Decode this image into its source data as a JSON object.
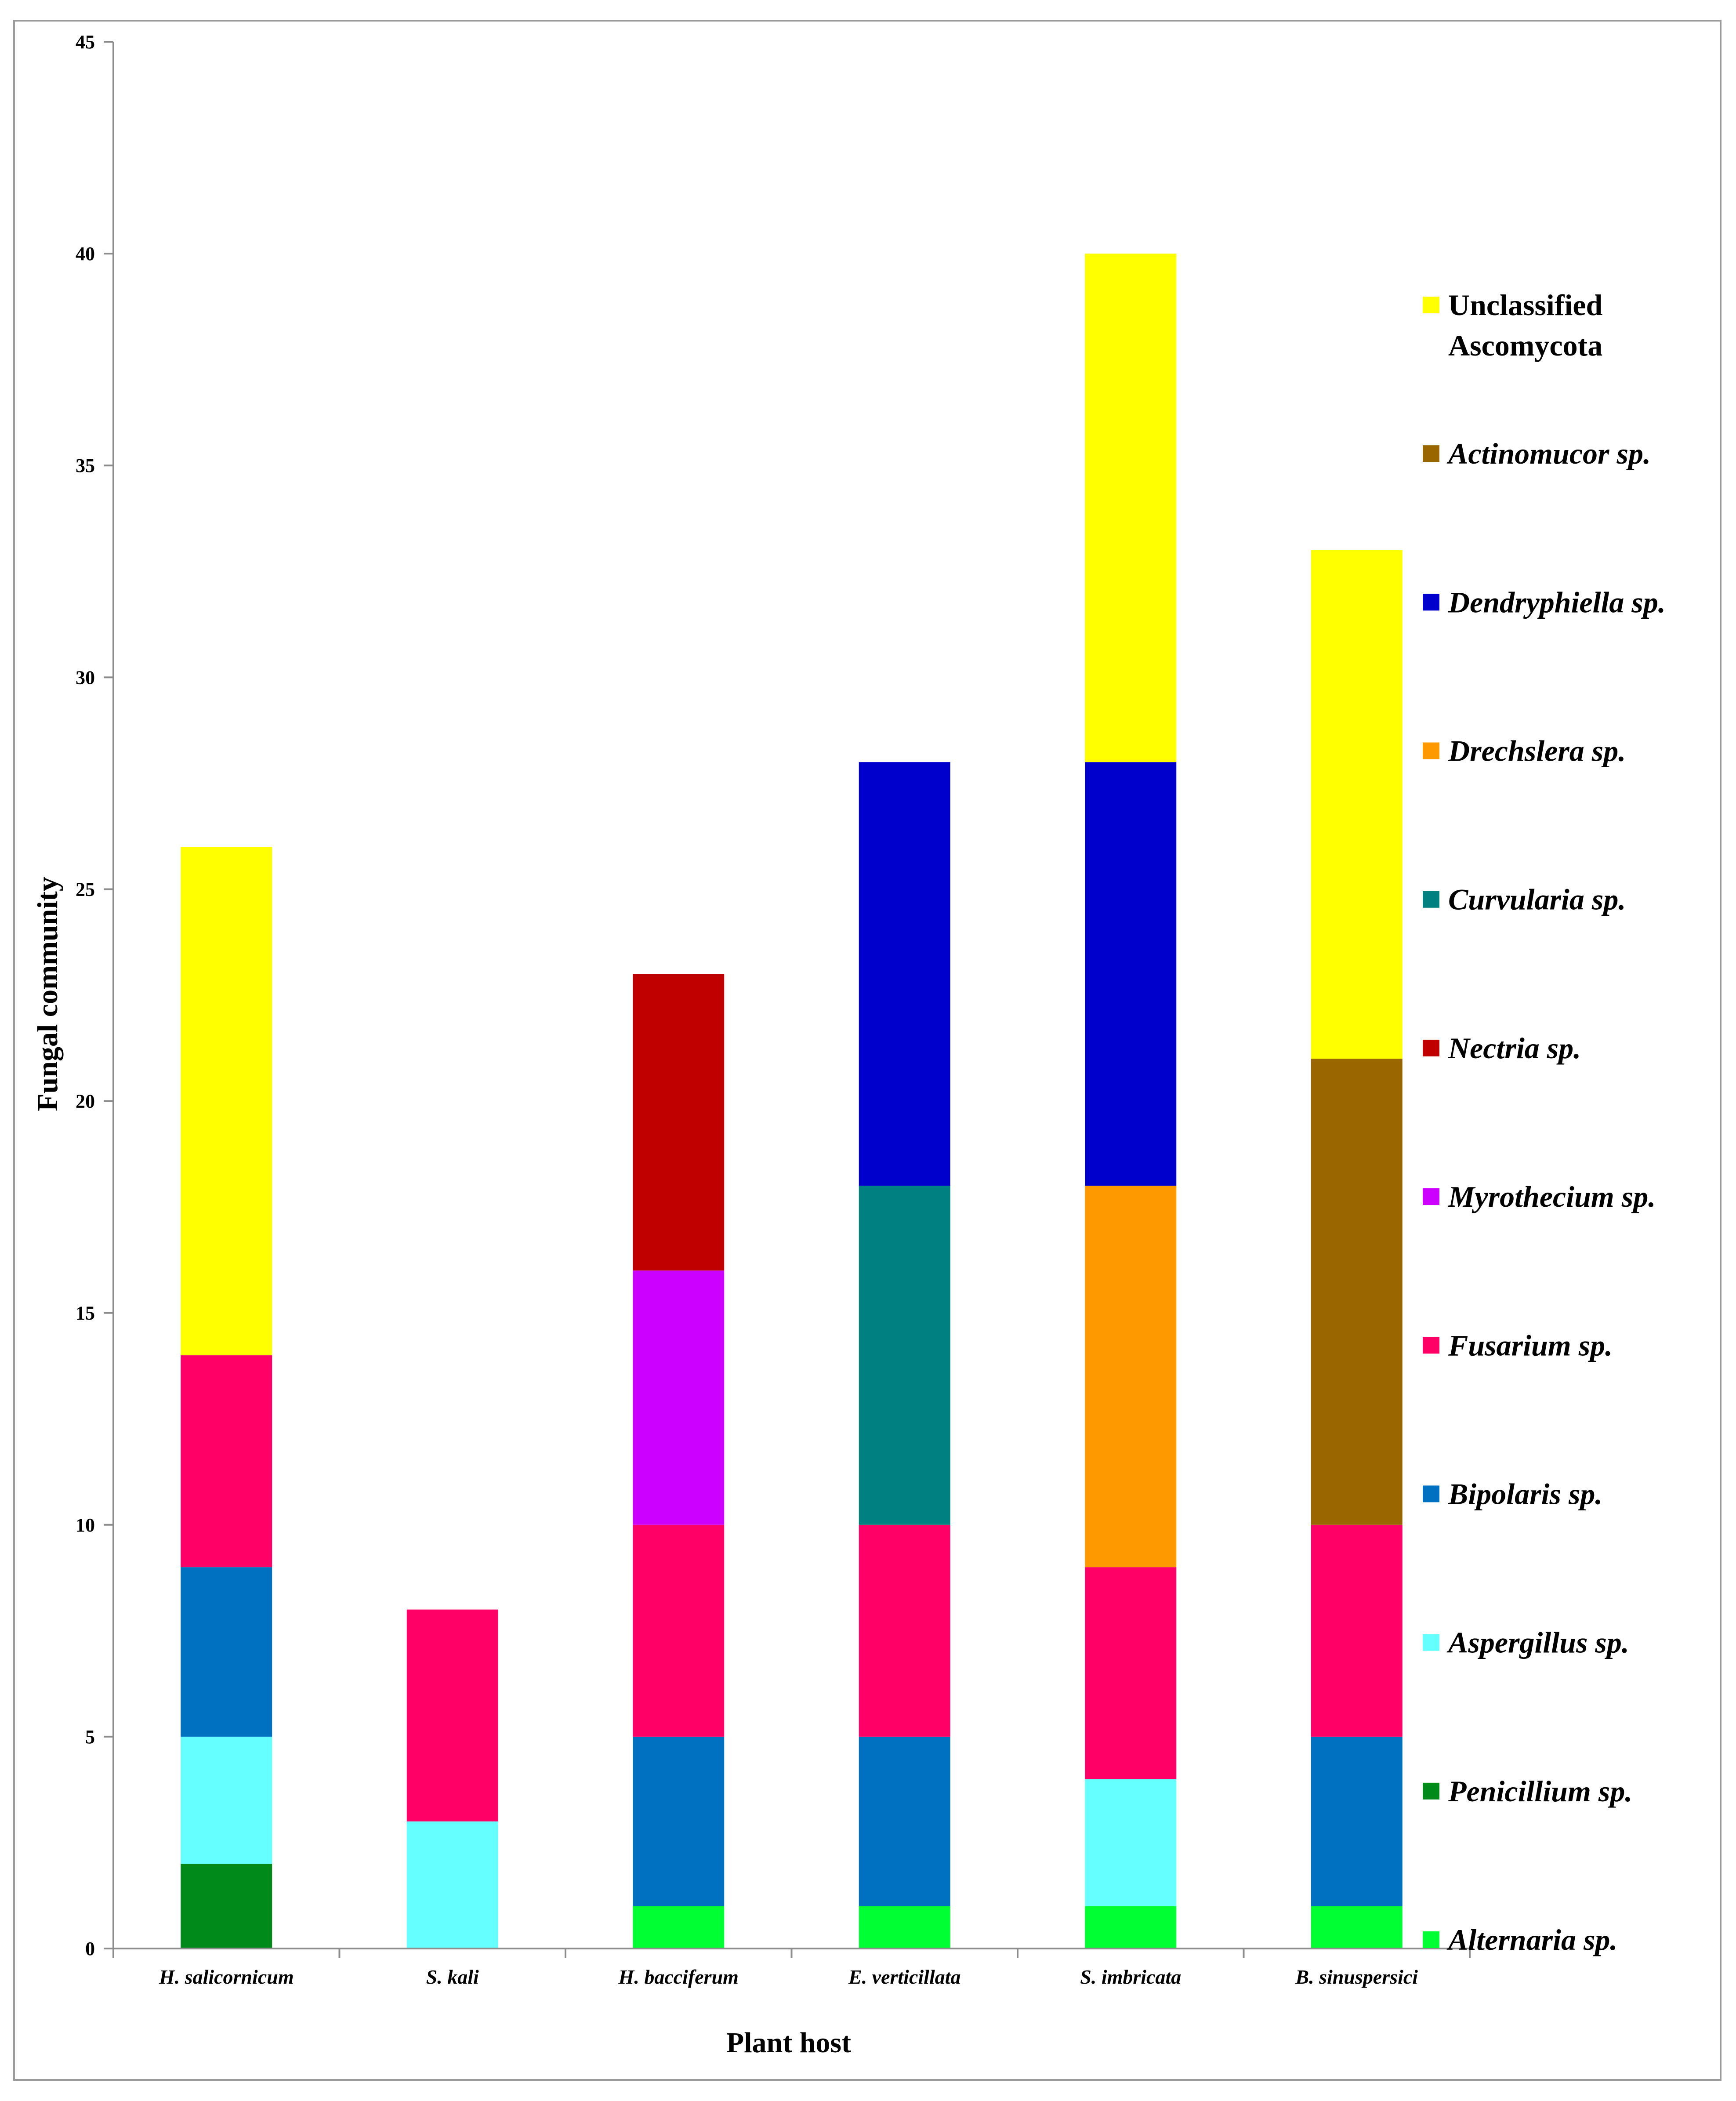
{
  "chart_data": {
    "type": "bar",
    "stacked": true,
    "title": "",
    "xlabel": "Plant host",
    "ylabel": "Fungal community",
    "ylim": [
      0,
      45
    ],
    "yticks": [
      0,
      5,
      10,
      15,
      20,
      25,
      30,
      35,
      40,
      45
    ],
    "grid": false,
    "legend_position": "right",
    "categories": [
      "H. salicornicum",
      "S. kali",
      "H. bacciferum",
      "E. verticillata",
      "S. imbricata",
      "B. sinuspersici"
    ],
    "series": [
      {
        "name": "Alternaria sp.",
        "italic": true,
        "color": "#00ff33",
        "values": [
          0,
          0,
          1,
          1,
          1,
          1
        ]
      },
      {
        "name": "Penicillium sp.",
        "italic": true,
        "color": "#008a1a",
        "values": [
          2,
          0,
          0,
          0,
          0,
          0
        ]
      },
      {
        "name": "Aspergillus sp.",
        "italic": true,
        "color": "#66ffff",
        "values": [
          3,
          3,
          0,
          0,
          3,
          0
        ]
      },
      {
        "name": "Bipolaris sp.",
        "italic": true,
        "color": "#0070c0",
        "values": [
          4,
          0,
          4,
          4,
          0,
          4
        ]
      },
      {
        "name": "Fusarium sp.",
        "italic": true,
        "color": "#ff0066",
        "values": [
          5,
          5,
          5,
          5,
          5,
          5
        ]
      },
      {
        "name": "Myrothecium sp.",
        "italic": true,
        "color": "#cc00ff",
        "values": [
          0,
          0,
          6,
          0,
          0,
          0
        ]
      },
      {
        "name": "Nectria sp.",
        "italic": true,
        "color": "#c00000",
        "values": [
          0,
          0,
          7,
          0,
          0,
          0
        ]
      },
      {
        "name": "Curvularia sp.",
        "italic": true,
        "color": "#008080",
        "values": [
          0,
          0,
          0,
          8,
          0,
          0
        ]
      },
      {
        "name": "Drechslera sp.",
        "italic": true,
        "color": "#ff9900",
        "values": [
          0,
          0,
          0,
          0,
          9,
          0
        ]
      },
      {
        "name": "Dendryphiella sp.",
        "italic": true,
        "color": "#0000cc",
        "values": [
          0,
          0,
          0,
          10,
          10,
          0
        ]
      },
      {
        "name": "Actinomucor sp.",
        "italic": true,
        "color": "#996600",
        "values": [
          0,
          0,
          0,
          0,
          0,
          11
        ]
      },
      {
        "name": "Unclassified Ascomycota",
        "italic": false,
        "label_lines": [
          "Unclassified",
          "Ascomycota"
        ],
        "color": "#ffff00",
        "values": [
          12,
          0,
          0,
          0,
          12,
          12
        ]
      }
    ]
  }
}
